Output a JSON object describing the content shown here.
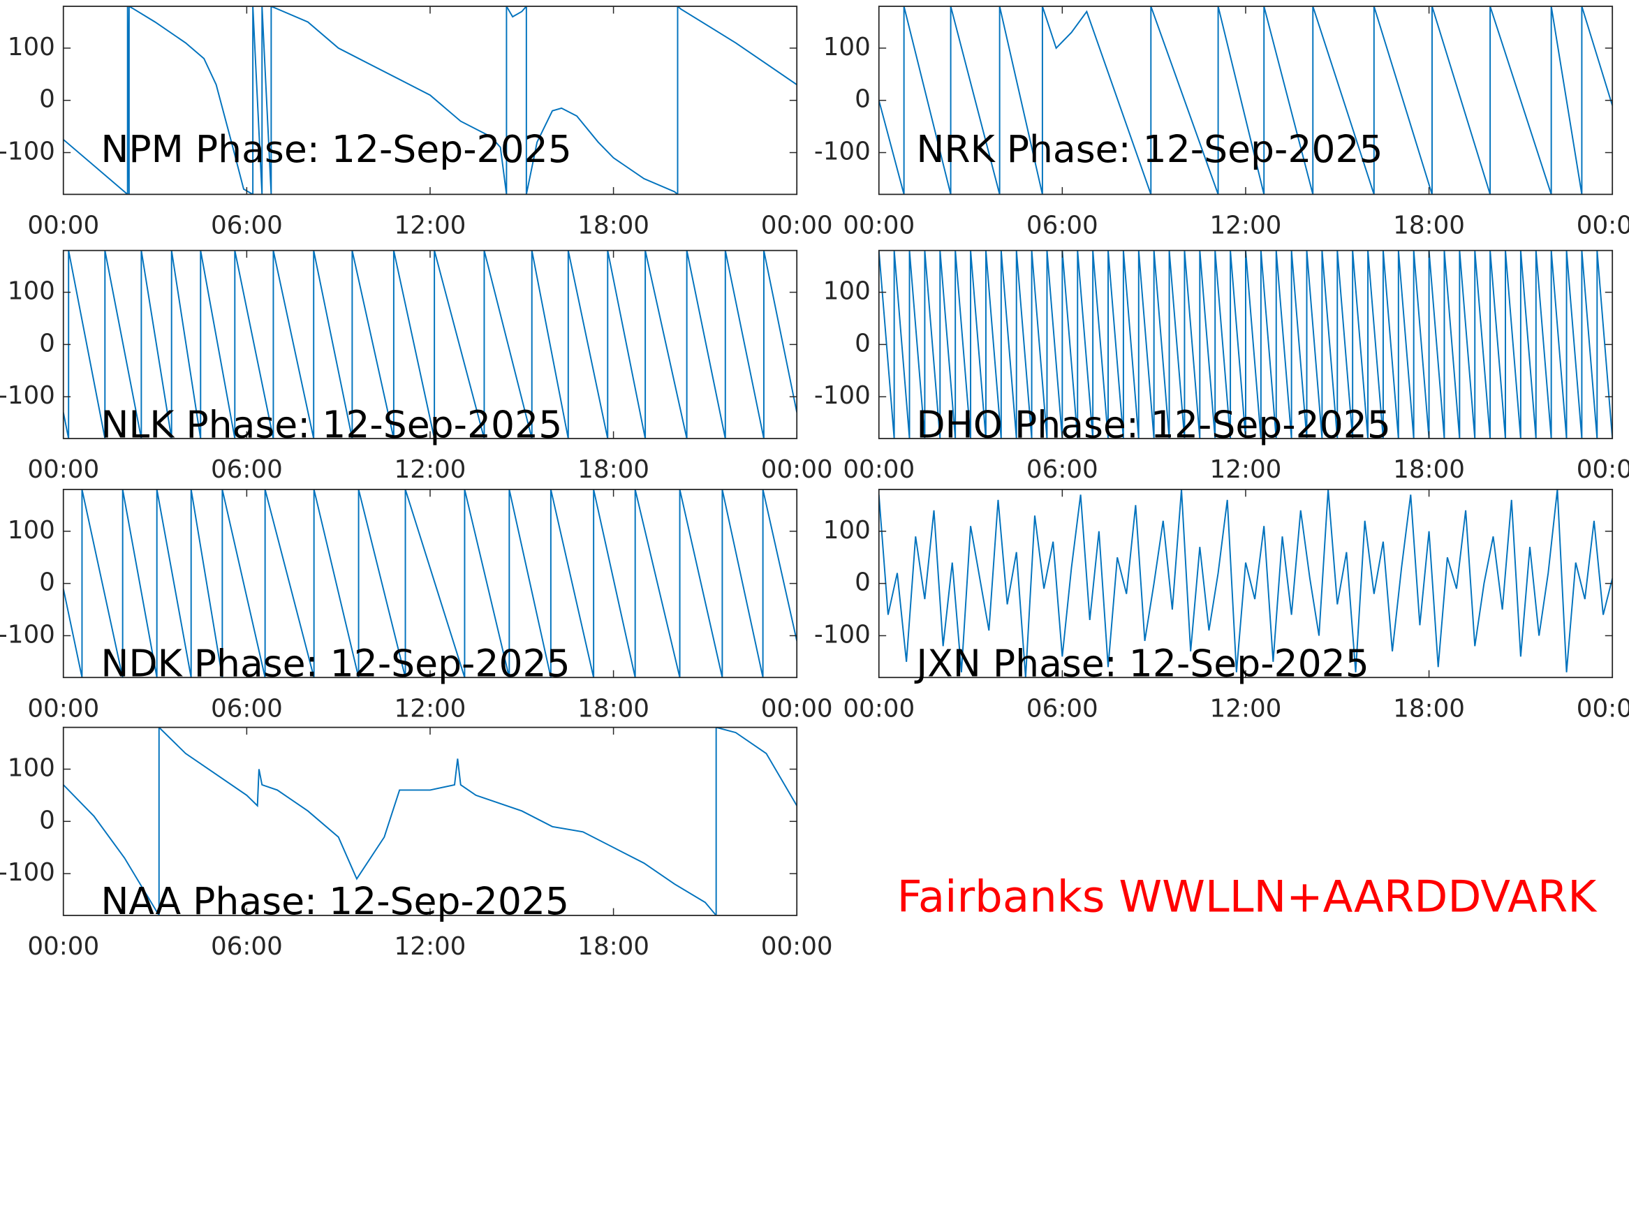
{
  "chart_data": [
    {
      "type": "line",
      "title": "NPM Phase: 12-Sep-2025",
      "color": "#0072bd",
      "x": [
        0,
        2.1,
        2.1,
        2.15,
        2.15,
        2.3,
        3,
        4,
        4.6,
        5,
        5.5,
        5.9,
        6.2,
        6.2,
        6.5,
        6.5,
        6.8,
        6.8,
        7,
        8,
        9,
        10,
        11,
        12,
        13,
        14,
        14.3,
        14.5,
        14.5,
        14.7,
        15,
        15.15,
        15.15,
        15.5,
        16,
        16.3,
        16.8,
        17.5,
        18,
        19,
        20,
        20.1,
        20.1,
        20.2,
        22,
        23,
        24
      ],
      "values": [
        -75,
        -180,
        180,
        -180,
        180,
        175,
        150,
        110,
        80,
        30,
        -80,
        -170,
        -180,
        180,
        -180,
        180,
        -180,
        180,
        175,
        150,
        100,
        70,
        40,
        10,
        -40,
        -70,
        -90,
        -180,
        180,
        160,
        170,
        180,
        -180,
        -80,
        -20,
        -15,
        -30,
        -80,
        -110,
        -150,
        -175,
        -180,
        180,
        175,
        110,
        70,
        30
      ],
      "xlim": [
        0,
        24
      ],
      "xticks": [
        {
          "value": 0,
          "label": "00:00"
        },
        {
          "value": 6,
          "label": "06:00"
        },
        {
          "value": 12,
          "label": "12:00"
        },
        {
          "value": 18,
          "label": "18:00"
        },
        {
          "value": 24,
          "label": "00:00"
        }
      ],
      "ylim": [
        -180,
        180
      ],
      "yticks": [
        -100,
        0,
        100
      ]
    },
    {
      "type": "line",
      "title": "NRK Phase: 12-Sep-2025",
      "color": "#0072bd",
      "x": [
        0,
        0.82,
        0.82,
        2.35,
        2.35,
        3.95,
        3.95,
        5.35,
        5.35,
        5.8,
        6.3,
        6.8,
        8.9,
        8.9,
        11.1,
        11.1,
        12.6,
        12.6,
        14.2,
        14.2,
        16.2,
        16.2,
        18.1,
        18.1,
        20.0,
        20.0,
        22.0,
        22.0,
        23.0,
        23.0,
        24
      ],
      "values": [
        0,
        -180,
        180,
        -180,
        180,
        -180,
        180,
        -180,
        180,
        100,
        130,
        170,
        -180,
        180,
        -180,
        180,
        -180,
        180,
        -180,
        180,
        -180,
        180,
        -180,
        180,
        -180,
        180,
        -180,
        180,
        -180,
        180,
        -10
      ],
      "xlim": [
        0,
        24
      ],
      "xticks": [
        {
          "value": 0,
          "label": "00:00"
        },
        {
          "value": 6,
          "label": "06:00"
        },
        {
          "value": 12,
          "label": "12:00"
        },
        {
          "value": 18,
          "label": "18:00"
        },
        {
          "value": 24,
          "label": "00:00"
        }
      ],
      "ylim": [
        -180,
        180
      ],
      "yticks": [
        -100,
        0,
        100
      ]
    },
    {
      "type": "line",
      "title": "NLK Phase: 12-Sep-2025",
      "color": "#0072bd",
      "x": [
        0,
        0.17,
        0.17,
        1.36,
        1.36,
        2.55,
        2.55,
        3.54,
        3.54,
        4.49,
        4.49,
        5.61,
        5.61,
        6.87,
        6.87,
        8.19,
        8.19,
        9.45,
        9.45,
        10.81,
        10.81,
        12.14,
        12.14,
        13.77,
        13.77,
        15.33,
        15.33,
        16.52,
        16.52,
        17.81,
        17.81,
        19.04,
        19.04,
        20.4,
        20.4,
        21.66,
        21.66,
        22.92,
        22.92,
        24
      ],
      "values": [
        -130,
        -180,
        180,
        -180,
        180,
        -180,
        180,
        -180,
        180,
        -180,
        180,
        -180,
        180,
        -180,
        180,
        -180,
        180,
        -180,
        180,
        -180,
        180,
        -180,
        180,
        -180,
        180,
        -180,
        180,
        -180,
        180,
        -180,
        180,
        -180,
        180,
        -180,
        180,
        -180,
        180,
        -180,
        180,
        -130
      ],
      "xlim": [
        0,
        24
      ],
      "xticks": [
        {
          "value": 0,
          "label": "00:00"
        },
        {
          "value": 6,
          "label": "06:00"
        },
        {
          "value": 12,
          "label": "12:00"
        },
        {
          "value": 18,
          "label": "18:00"
        },
        {
          "value": 24,
          "label": "00:00"
        }
      ],
      "ylim": [
        -180,
        180
      ],
      "yticks": [
        -100,
        0,
        100
      ]
    },
    {
      "type": "line",
      "title": "DHO Phase: 12-Sep-2025",
      "color": "#0072bd",
      "x": [
        0,
        0.5,
        0.5,
        1,
        1,
        1.5,
        1.5,
        2,
        2,
        2.5,
        2.5,
        3,
        3,
        3.5,
        3.5,
        4,
        4,
        4.5,
        4.5,
        5,
        5,
        5.5,
        5.5,
        6,
        6,
        6.5,
        6.5,
        7,
        7,
        7.5,
        7.5,
        8,
        8,
        8.5,
        8.5,
        9,
        9,
        9.5,
        9.5,
        10,
        10,
        10.5,
        10.5,
        11,
        11,
        11.5,
        11.5,
        12,
        12,
        12.5,
        12.5,
        13,
        13,
        13.5,
        13.5,
        14,
        14,
        14.5,
        14.5,
        15,
        15,
        15.5,
        15.5,
        16,
        16,
        16.5,
        16.5,
        17,
        17,
        17.5,
        17.5,
        18,
        18,
        18.5,
        18.5,
        19,
        19,
        19.5,
        19.5,
        20,
        20,
        20.5,
        20.5,
        21,
        21,
        21.5,
        21.5,
        22,
        22,
        22.5,
        22.5,
        23,
        23,
        23.5,
        23.5,
        24
      ],
      "values": [
        180,
        -180,
        180,
        -180,
        180,
        -180,
        180,
        -180,
        180,
        -180,
        180,
        -180,
        180,
        -180,
        180,
        -180,
        180,
        -180,
        180,
        -180,
        180,
        -180,
        180,
        -180,
        180,
        -180,
        180,
        -180,
        180,
        -180,
        180,
        -180,
        180,
        -180,
        180,
        -180,
        180,
        -180,
        180,
        -180,
        180,
        -180,
        180,
        -180,
        180,
        -180,
        180,
        -180,
        180,
        -180,
        180,
        -180,
        180,
        -180,
        180,
        -180,
        180,
        -180,
        180,
        -180,
        180,
        -180,
        180,
        -180,
        180,
        -180,
        180,
        -180,
        180,
        -180,
        180,
        -180,
        180,
        -180,
        180,
        -180,
        180,
        -180,
        180,
        -180,
        180,
        -180,
        180,
        -180,
        180,
        -180,
        180,
        -180,
        180,
        -180,
        180,
        -180,
        180,
        -180,
        180,
        -180
      ],
      "xlim": [
        0,
        24
      ],
      "xticks": [
        {
          "value": 0,
          "label": "00:00"
        },
        {
          "value": 6,
          "label": "06:00"
        },
        {
          "value": 12,
          "label": "12:00"
        },
        {
          "value": 18,
          "label": "18:00"
        },
        {
          "value": 24,
          "label": "00:00"
        }
      ],
      "ylim": [
        -180,
        180
      ],
      "yticks": [
        -100,
        0,
        100
      ]
    },
    {
      "type": "line",
      "title": "NDK Phase: 12-Sep-2025",
      "color": "#0072bd",
      "x": [
        0,
        0.61,
        0.61,
        1.94,
        1.94,
        3.06,
        3.06,
        4.18,
        4.18,
        5.2,
        5.2,
        6.6,
        6.6,
        8.2,
        8.2,
        9.66,
        9.66,
        11.19,
        11.19,
        13.13,
        13.13,
        14.59,
        14.59,
        15.95,
        15.95,
        17.35,
        17.35,
        18.71,
        18.71,
        20.17,
        20.17,
        21.56,
        21.56,
        22.89,
        22.89,
        24
      ],
      "values": [
        -10,
        -180,
        180,
        -180,
        180,
        -180,
        180,
        -180,
        180,
        -180,
        180,
        -180,
        180,
        -180,
        180,
        -180,
        180,
        -180,
        180,
        -180,
        180,
        -180,
        180,
        -180,
        180,
        -180,
        180,
        -180,
        180,
        -180,
        180,
        -180,
        180,
        -180,
        180,
        -110
      ],
      "xlim": [
        0,
        24
      ],
      "xticks": [
        {
          "value": 0,
          "label": "00:00"
        },
        {
          "value": 6,
          "label": "06:00"
        },
        {
          "value": 12,
          "label": "12:00"
        },
        {
          "value": 18,
          "label": "18:00"
        },
        {
          "value": 24,
          "label": "00:00"
        }
      ],
      "ylim": [
        -180,
        180
      ],
      "yticks": [
        -100,
        0,
        100
      ]
    },
    {
      "type": "line",
      "title": "JXN Phase: 12-Sep-2025",
      "color": "#0072bd",
      "x": [
        0,
        0.3,
        0.6,
        0.9,
        1.2,
        1.5,
        1.8,
        2.1,
        2.4,
        2.7,
        3,
        3.3,
        3.6,
        3.9,
        4.2,
        4.5,
        4.8,
        5.1,
        5.4,
        5.7,
        6,
        6.3,
        6.6,
        6.9,
        7.2,
        7.5,
        7.8,
        8.1,
        8.4,
        8.7,
        9,
        9.3,
        9.6,
        9.9,
        10.2,
        10.5,
        10.8,
        11.1,
        11.4,
        11.7,
        12,
        12.3,
        12.6,
        12.9,
        13.2,
        13.5,
        13.8,
        14.1,
        14.4,
        14.7,
        15,
        15.3,
        15.6,
        15.9,
        16.2,
        16.5,
        16.8,
        17.1,
        17.4,
        17.7,
        18,
        18.3,
        18.6,
        18.9,
        19.2,
        19.5,
        19.8,
        20.1,
        20.4,
        20.7,
        21,
        21.3,
        21.6,
        21.9,
        22.2,
        22.5,
        22.8,
        23.1,
        23.4,
        23.7,
        24
      ],
      "values": [
        170,
        -60,
        20,
        -150,
        90,
        -30,
        140,
        -120,
        40,
        -170,
        110,
        10,
        -90,
        160,
        -40,
        60,
        -180,
        130,
        -10,
        80,
        -140,
        30,
        170,
        -70,
        100,
        -160,
        50,
        -20,
        150,
        -110,
        0,
        120,
        -50,
        180,
        -130,
        70,
        -90,
        20,
        160,
        -170,
        40,
        -30,
        110,
        -150,
        90,
        -60,
        140,
        10,
        -100,
        180,
        -40,
        60,
        -170,
        120,
        -20,
        80,
        -130,
        30,
        170,
        -80,
        100,
        -160,
        50,
        -10,
        140,
        -120,
        0,
        90,
        -50,
        160,
        -140,
        70,
        -100,
        20,
        180,
        -170,
        40,
        -30,
        120,
        -60,
        10
      ],
      "xlim": [
        0,
        24
      ],
      "xticks": [
        {
          "value": 0,
          "label": "00:00"
        },
        {
          "value": 6,
          "label": "06:00"
        },
        {
          "value": 12,
          "label": "12:00"
        },
        {
          "value": 18,
          "label": "18:00"
        },
        {
          "value": 24,
          "label": "00:00"
        }
      ],
      "ylim": [
        -180,
        180
      ],
      "yticks": [
        -100,
        0,
        100
      ]
    },
    {
      "type": "line",
      "title": "NAA Phase: 12-Sep-2025",
      "color": "#0072bd",
      "x": [
        0,
        1,
        2,
        3.13,
        3.13,
        4,
        5,
        6,
        6.35,
        6.4,
        6.5,
        7,
        8,
        9,
        9.6,
        10.5,
        11,
        12,
        12.8,
        12.9,
        13,
        13.5,
        15,
        16,
        17,
        18,
        19,
        20,
        21,
        21.36,
        21.36,
        22,
        23,
        24
      ],
      "values": [
        70,
        10,
        -70,
        -180,
        180,
        130,
        90,
        50,
        30,
        100,
        70,
        60,
        20,
        -30,
        -110,
        -30,
        60,
        60,
        70,
        120,
        70,
        50,
        20,
        -10,
        -20,
        -50,
        -80,
        -120,
        -155,
        -180,
        180,
        170,
        130,
        30
      ],
      "xlim": [
        0,
        24
      ],
      "xticks": [
        {
          "value": 0,
          "label": "00:00"
        },
        {
          "value": 6,
          "label": "06:00"
        },
        {
          "value": 12,
          "label": "12:00"
        },
        {
          "value": 18,
          "label": "18:00"
        },
        {
          "value": 24,
          "label": "00:00"
        }
      ],
      "ylim": [
        -180,
        180
      ],
      "yticks": [
        -100,
        0,
        100
      ]
    }
  ],
  "caption": "Fairbanks WWLLN+AARDDVARK"
}
